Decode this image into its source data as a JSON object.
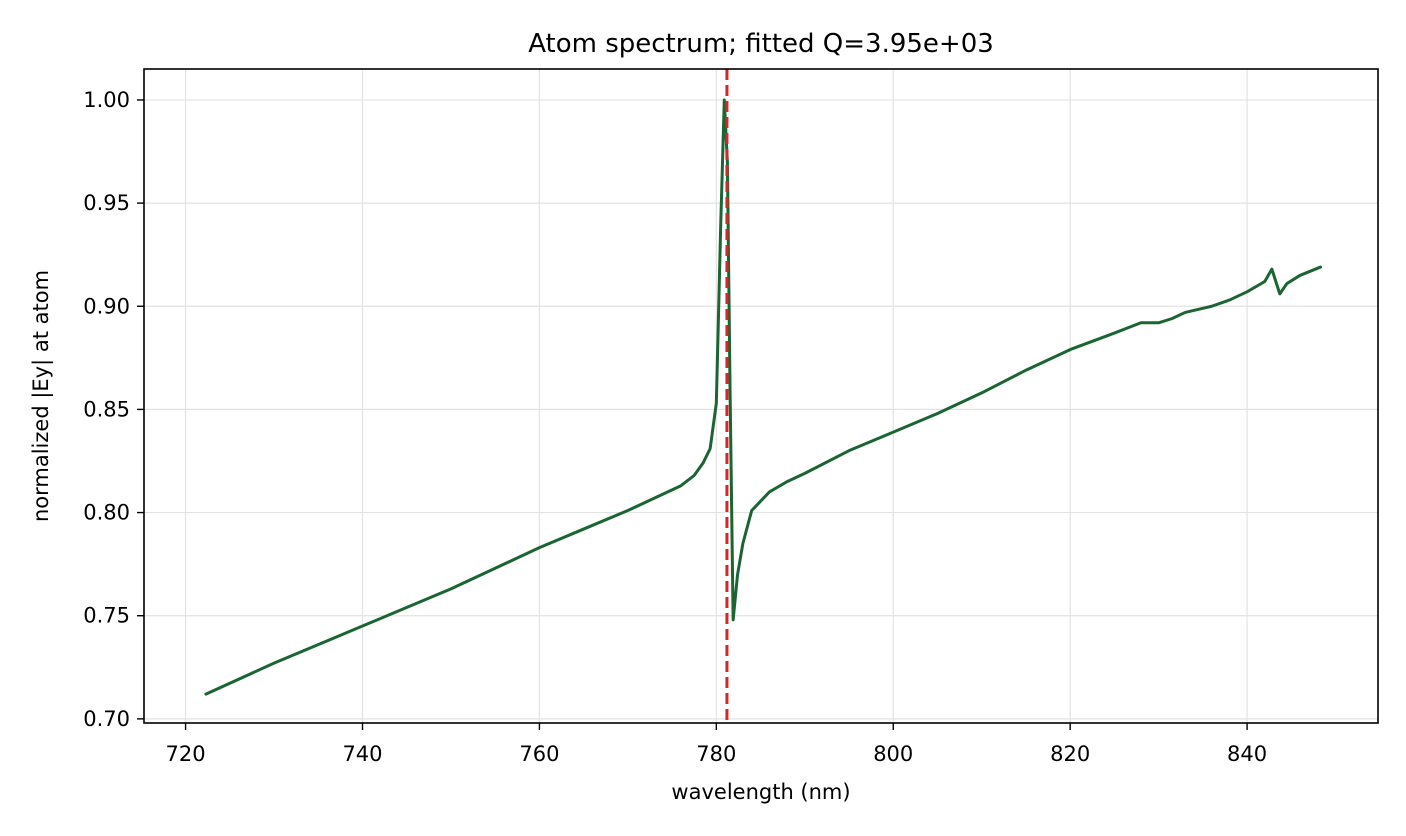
{
  "chart_data": {
    "type": "line",
    "title": "Atom spectrum; fitted Q=3.95e+03",
    "xlabel": "wavelength (nm)",
    "ylabel": "normalized |Ey| at atom",
    "xlim": [
      715.3,
      854.8
    ],
    "ylim": [
      0.698,
      1.015
    ],
    "grid": true,
    "x_ticks": [
      720,
      740,
      760,
      780,
      800,
      820,
      840
    ],
    "y_ticks": [
      0.7,
      0.75,
      0.8,
      0.85,
      0.9,
      0.95,
      1.0
    ],
    "x_tick_labels": [
      "720",
      "740",
      "760",
      "780",
      "800",
      "820",
      "840"
    ],
    "y_tick_labels": [
      "0.70",
      "0.75",
      "0.80",
      "0.85",
      "0.90",
      "0.95",
      "1.00"
    ],
    "series": [
      {
        "color": "#1a6532",
        "x": [
          722.3,
          730,
          740,
          750,
          760,
          765,
          770,
          772,
          774,
          776,
          777.5,
          778.5,
          779.3,
          780,
          780.5,
          780.9,
          781.25,
          781.55,
          781.9,
          782.4,
          783.0,
          784,
          786,
          788,
          790,
          795,
          800,
          805,
          810,
          815,
          820,
          825,
          828,
          830,
          831.5,
          833,
          835,
          836,
          838,
          840,
          842,
          842.8,
          843.7,
          844.5,
          846,
          848.3
        ],
        "y": [
          0.712,
          0.727,
          0.745,
          0.763,
          0.783,
          0.792,
          0.801,
          0.805,
          0.809,
          0.813,
          0.818,
          0.824,
          0.831,
          0.853,
          0.94,
          1.0,
          0.97,
          0.86,
          0.748,
          0.77,
          0.785,
          0.801,
          0.81,
          0.815,
          0.819,
          0.83,
          0.839,
          0.848,
          0.858,
          0.869,
          0.879,
          0.887,
          0.892,
          0.892,
          0.894,
          0.897,
          0.899,
          0.9,
          0.903,
          0.907,
          0.912,
          0.918,
          0.906,
          0.911,
          0.915,
          0.919
        ]
      }
    ],
    "reference_line": {
      "x": 781.2,
      "color": "#d62728",
      "style": "dashed"
    }
  }
}
